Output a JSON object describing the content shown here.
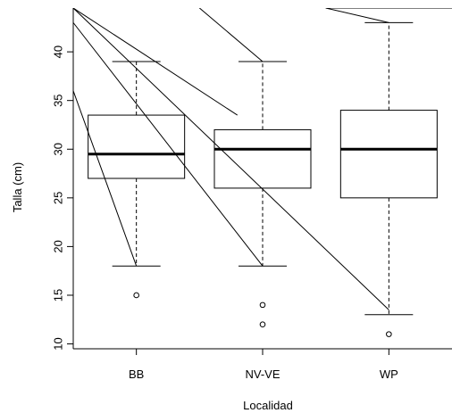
{
  "chart_data": {
    "type": "box",
    "title": "",
    "xlabel": "Localidad",
    "ylabel": "Talla (cm)",
    "categories": [
      "BB",
      "NV-VE",
      "WP"
    ],
    "ylim": [
      9.5,
      44.5
    ],
    "yticks": [
      10,
      15,
      20,
      25,
      30,
      35,
      40
    ],
    "boxes": [
      {
        "category": "BB",
        "whisker_low": 18,
        "q1": 27,
        "median": 29.5,
        "q3": 33.5,
        "whisker_high": 39,
        "outliers": [
          15
        ]
      },
      {
        "category": "NV-VE",
        "whisker_low": 18,
        "q1": 26,
        "median": 30,
        "q3": 32,
        "whisker_high": 39,
        "outliers": [
          14,
          12
        ]
      },
      {
        "category": "WP",
        "whisker_low": 13,
        "q1": 25,
        "median": 30,
        "q3": 34,
        "whisker_high": 43,
        "outliers": [
          11
        ]
      }
    ],
    "overlay_lines": [
      {
        "from": [
          0.5,
          36
        ],
        "to": [
          1,
          18
        ]
      },
      {
        "from": [
          0.5,
          43
        ],
        "to": [
          2,
          18
        ]
      },
      {
        "from": [
          0.5,
          44.5
        ],
        "to": [
          3,
          13.5
        ]
      },
      {
        "from": [
          0.5,
          44.5
        ],
        "to": [
          1.8,
          33.5
        ]
      },
      {
        "from": [
          1.5,
          44.5
        ],
        "to": [
          2,
          39
        ]
      },
      {
        "from": [
          2.5,
          44.5
        ],
        "to": [
          3,
          43
        ]
      },
      {
        "from": [
          2.5,
          44.5
        ],
        "to": [
          3.5,
          44.5
        ]
      }
    ],
    "grid": false,
    "legend": "none"
  }
}
